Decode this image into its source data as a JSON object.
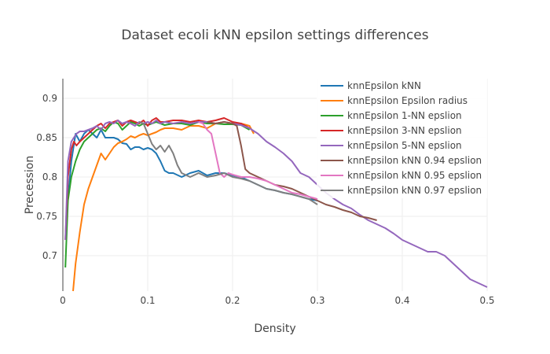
{
  "chart_data": {
    "type": "line",
    "title": "Dataset ecoli kNN epsilon settings differences",
    "xlabel": "Density",
    "ylabel": "Precession",
    "xlim": [
      0,
      0.5
    ],
    "ylim": [
      0.655,
      0.925
    ],
    "x_ticks": [
      0,
      0.1,
      0.2,
      0.3,
      0.4,
      0.5
    ],
    "x_tick_labels": [
      "0",
      "0.1",
      "0.2",
      "0.3",
      "0.4",
      "0.5"
    ],
    "y_ticks": [
      0.7,
      0.75,
      0.8,
      0.85,
      0.9
    ],
    "y_tick_labels": [
      "0.7",
      "0.75",
      "0.8",
      "0.85",
      "0.9"
    ],
    "grid": true,
    "legend_position": "top-right",
    "series": [
      {
        "name": "knnEpsilon kNN",
        "color": "#1f77b4",
        "x": [
          0.005,
          0.01,
          0.015,
          0.02,
          0.025,
          0.03,
          0.035,
          0.04,
          0.045,
          0.05,
          0.055,
          0.06,
          0.065,
          0.07,
          0.075,
          0.08,
          0.085,
          0.09,
          0.095,
          0.1,
          0.105,
          0.11,
          0.115,
          0.12,
          0.125,
          0.13,
          0.14,
          0.15,
          0.16,
          0.17,
          0.18,
          0.19,
          0.2,
          0.21,
          0.22,
          0.23,
          0.24,
          0.25,
          0.26,
          0.27,
          0.28,
          0.29,
          0.3
        ],
        "y": [
          0.76,
          0.82,
          0.855,
          0.845,
          0.855,
          0.86,
          0.855,
          0.85,
          0.86,
          0.85,
          0.85,
          0.85,
          0.848,
          0.843,
          0.842,
          0.835,
          0.838,
          0.838,
          0.835,
          0.837,
          0.835,
          0.83,
          0.82,
          0.808,
          0.805,
          0.805,
          0.8,
          0.805,
          0.808,
          0.802,
          0.805,
          0.805,
          0.802,
          0.8,
          0.795,
          0.79,
          0.785,
          0.783,
          0.78,
          0.778,
          0.775,
          0.772,
          0.77
        ]
      },
      {
        "name": "knnEpsilon Epsilon radius",
        "color": "#ff7f0e",
        "x": [
          0.012,
          0.015,
          0.02,
          0.025,
          0.03,
          0.035,
          0.04,
          0.045,
          0.05,
          0.055,
          0.06,
          0.065,
          0.07,
          0.075,
          0.08,
          0.085,
          0.09,
          0.095,
          0.1,
          0.105,
          0.11,
          0.115,
          0.12,
          0.13,
          0.14,
          0.15,
          0.16,
          0.17,
          0.18,
          0.19,
          0.2,
          0.21,
          0.22,
          0.225
        ],
        "y": [
          0.655,
          0.69,
          0.73,
          0.765,
          0.785,
          0.8,
          0.815,
          0.83,
          0.822,
          0.83,
          0.838,
          0.843,
          0.845,
          0.848,
          0.852,
          0.85,
          0.853,
          0.855,
          0.853,
          0.855,
          0.857,
          0.86,
          0.862,
          0.862,
          0.86,
          0.865,
          0.865,
          0.862,
          0.868,
          0.87,
          0.868,
          0.868,
          0.865,
          0.855
        ]
      },
      {
        "name": "knnEpsilon 1-NN epslion",
        "color": "#2ca02c",
        "x": [
          0.003,
          0.006,
          0.01,
          0.015,
          0.02,
          0.025,
          0.03,
          0.035,
          0.04,
          0.045,
          0.05,
          0.055,
          0.06,
          0.065,
          0.07,
          0.075,
          0.08,
          0.085,
          0.09,
          0.095,
          0.1,
          0.105,
          0.11,
          0.115,
          0.12,
          0.13,
          0.14,
          0.15,
          0.16,
          0.17,
          0.18,
          0.19,
          0.2,
          0.21,
          0.22
        ],
        "y": [
          0.685,
          0.77,
          0.8,
          0.82,
          0.835,
          0.845,
          0.85,
          0.855,
          0.86,
          0.862,
          0.858,
          0.865,
          0.87,
          0.868,
          0.86,
          0.865,
          0.87,
          0.868,
          0.865,
          0.868,
          0.866,
          0.868,
          0.87,
          0.868,
          0.866,
          0.868,
          0.868,
          0.866,
          0.87,
          0.868,
          0.868,
          0.867,
          0.867,
          0.866,
          0.86
        ]
      },
      {
        "name": "knnEpsilon 3-NN epslion",
        "color": "#d62728",
        "x": [
          0.003,
          0.006,
          0.01,
          0.013,
          0.016,
          0.02,
          0.025,
          0.03,
          0.035,
          0.04,
          0.045,
          0.05,
          0.055,
          0.06,
          0.065,
          0.07,
          0.075,
          0.08,
          0.085,
          0.09,
          0.095,
          0.1,
          0.105,
          0.11,
          0.115,
          0.12,
          0.13,
          0.14,
          0.15,
          0.16,
          0.17,
          0.18,
          0.19,
          0.2,
          0.21,
          0.22
        ],
        "y": [
          0.72,
          0.8,
          0.835,
          0.845,
          0.84,
          0.845,
          0.85,
          0.855,
          0.86,
          0.865,
          0.868,
          0.862,
          0.868,
          0.87,
          0.872,
          0.865,
          0.87,
          0.872,
          0.87,
          0.868,
          0.872,
          0.865,
          0.872,
          0.875,
          0.87,
          0.87,
          0.872,
          0.872,
          0.87,
          0.872,
          0.87,
          0.872,
          0.875,
          0.87,
          0.868,
          0.862
        ]
      },
      {
        "name": "knnEpsilon 5-NN epslion",
        "color": "#9467bd",
        "x": [
          0.003,
          0.006,
          0.01,
          0.013,
          0.016,
          0.02,
          0.025,
          0.03,
          0.035,
          0.04,
          0.045,
          0.05,
          0.055,
          0.06,
          0.065,
          0.07,
          0.075,
          0.08,
          0.085,
          0.09,
          0.095,
          0.1,
          0.105,
          0.11,
          0.115,
          0.12,
          0.13,
          0.14,
          0.15,
          0.16,
          0.17,
          0.18,
          0.19,
          0.2,
          0.21,
          0.22,
          0.23,
          0.24,
          0.25,
          0.26,
          0.27,
          0.28,
          0.29,
          0.3,
          0.31,
          0.32,
          0.33,
          0.34,
          0.35,
          0.36,
          0.37,
          0.38,
          0.39,
          0.4,
          0.41,
          0.42,
          0.43,
          0.44,
          0.45,
          0.46,
          0.47,
          0.48,
          0.49,
          0.5
        ],
        "y": [
          0.72,
          0.82,
          0.845,
          0.85,
          0.855,
          0.858,
          0.858,
          0.86,
          0.862,
          0.865,
          0.86,
          0.868,
          0.87,
          0.868,
          0.872,
          0.868,
          0.87,
          0.868,
          0.865,
          0.87,
          0.868,
          0.87,
          0.868,
          0.872,
          0.868,
          0.87,
          0.868,
          0.87,
          0.868,
          0.87,
          0.87,
          0.868,
          0.87,
          0.868,
          0.866,
          0.862,
          0.855,
          0.845,
          0.838,
          0.83,
          0.82,
          0.805,
          0.8,
          0.79,
          0.78,
          0.772,
          0.765,
          0.76,
          0.752,
          0.745,
          0.74,
          0.735,
          0.728,
          0.72,
          0.715,
          0.71,
          0.705,
          0.705,
          0.7,
          0.69,
          0.68,
          0.67,
          0.665,
          0.66
        ]
      },
      {
        "name": "knnEpsilon kNN 0.94 epslion",
        "color": "#8c564b",
        "x": [
          0.17,
          0.18,
          0.19,
          0.2,
          0.205,
          0.21,
          0.215,
          0.22,
          0.23,
          0.24,
          0.25,
          0.26,
          0.27,
          0.28,
          0.29,
          0.3,
          0.31,
          0.32,
          0.33,
          0.34,
          0.35,
          0.36,
          0.37
        ],
        "y": [
          0.87,
          0.868,
          0.87,
          0.868,
          0.865,
          0.84,
          0.81,
          0.805,
          0.8,
          0.795,
          0.79,
          0.788,
          0.785,
          0.78,
          0.775,
          0.77,
          0.765,
          0.762,
          0.758,
          0.755,
          0.75,
          0.748,
          0.745
        ]
      },
      {
        "name": "knnEpsilon kNN 0.95 epslion",
        "color": "#e377c2",
        "x": [
          0.16,
          0.165,
          0.17,
          0.175,
          0.18,
          0.185,
          0.19,
          0.195,
          0.2,
          0.21,
          0.22,
          0.23,
          0.24,
          0.25,
          0.26,
          0.27,
          0.28,
          0.29,
          0.3
        ],
        "y": [
          0.87,
          0.868,
          0.86,
          0.855,
          0.83,
          0.805,
          0.8,
          0.805,
          0.803,
          0.8,
          0.8,
          0.798,
          0.795,
          0.79,
          0.785,
          0.78,
          0.778,
          0.775,
          0.772
        ]
      },
      {
        "name": "knnEpsilon kNN 0.97 epslion",
        "color": "#7f7f7f",
        "x": [
          0.09,
          0.095,
          0.1,
          0.105,
          0.11,
          0.115,
          0.12,
          0.125,
          0.13,
          0.135,
          0.14,
          0.15,
          0.16,
          0.17,
          0.18,
          0.19,
          0.2,
          0.21,
          0.22,
          0.23,
          0.24,
          0.25,
          0.26,
          0.27,
          0.28,
          0.29,
          0.3
        ],
        "y": [
          0.87,
          0.868,
          0.855,
          0.842,
          0.835,
          0.84,
          0.832,
          0.84,
          0.83,
          0.815,
          0.805,
          0.8,
          0.805,
          0.8,
          0.802,
          0.805,
          0.8,
          0.798,
          0.795,
          0.79,
          0.785,
          0.783,
          0.78,
          0.778,
          0.775,
          0.772,
          0.765
        ]
      }
    ]
  }
}
